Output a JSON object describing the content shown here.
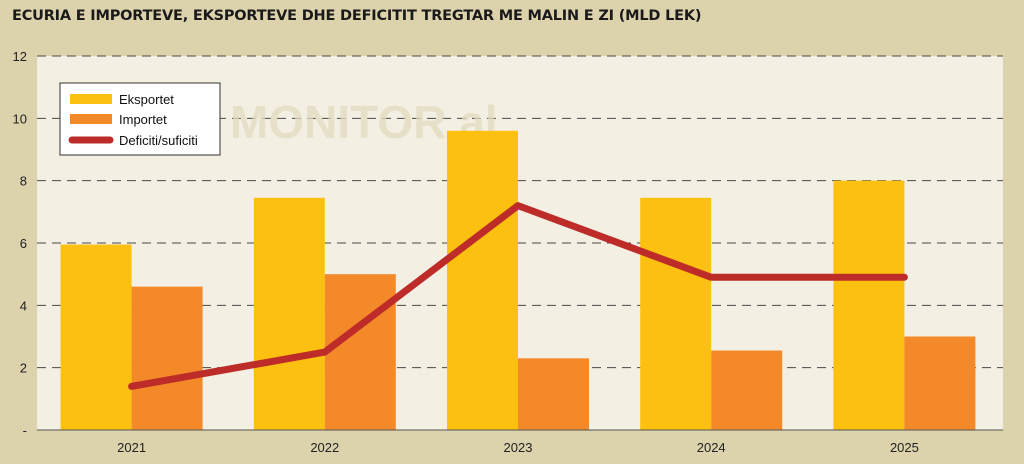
{
  "chart_data": {
    "type": "bar",
    "title": "ECURIA E IMPORTEVE, EKSPORTEVE DHE DEFICITIT TREGTAR ME MALIN E ZI (MLD LEK)",
    "categories": [
      "2021",
      "2022",
      "2023",
      "2024",
      "2025"
    ],
    "series": [
      {
        "name": "Eksportet",
        "type": "bar",
        "values": [
          5.95,
          7.45,
          9.6,
          7.45,
          8.0
        ]
      },
      {
        "name": "Importet",
        "type": "bar",
        "values": [
          4.6,
          5.0,
          2.3,
          2.55,
          3.0
        ]
      },
      {
        "name": "Deficiti/suficiti",
        "type": "line",
        "values": [
          1.4,
          2.5,
          7.2,
          4.9,
          4.9
        ]
      }
    ],
    "y_ticks": [
      "-",
      "2",
      "4",
      "6",
      "8",
      "10",
      "12"
    ],
    "ylim": [
      0,
      12
    ],
    "xlabel": "",
    "ylabel": "",
    "grid": true,
    "legend_position": "top-left",
    "colors": {
      "Eksportet": "#fcc010",
      "Importet": "#f4892a",
      "Deficiti/suficiti": "#be2c2a",
      "plot_background": "#f3efe2",
      "page_background": "#dcd2ac"
    },
    "watermark": "MONITOR.al"
  }
}
